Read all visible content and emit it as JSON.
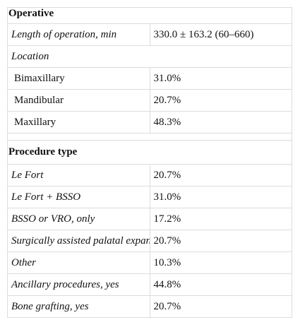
{
  "table": {
    "rows": [
      [
        "Operative"
      ],
      [
        "Length of operation, min",
        "330.0 ± 163.2 (60–660)"
      ],
      [
        "Location"
      ],
      [
        "Bimaxillary",
        "31.0%"
      ],
      [
        "Mandibular",
        "20.7%"
      ],
      [
        "Maxillary",
        "48.3%"
      ],
      [
        "Procedure type"
      ],
      [
        "Le Fort",
        "20.7%"
      ],
      [
        "Le Fort + BSSO",
        "31.0%"
      ],
      [
        "BSSO or VRO, only",
        "17.2%"
      ],
      [
        "Surgically assisted palatal expansion",
        "20.7%"
      ],
      [
        "Other",
        "10.3%"
      ],
      [
        "Ancillary procedures, yes",
        "44.8%"
      ],
      [
        "Bone grafting, yes",
        "20.7%"
      ]
    ]
  }
}
